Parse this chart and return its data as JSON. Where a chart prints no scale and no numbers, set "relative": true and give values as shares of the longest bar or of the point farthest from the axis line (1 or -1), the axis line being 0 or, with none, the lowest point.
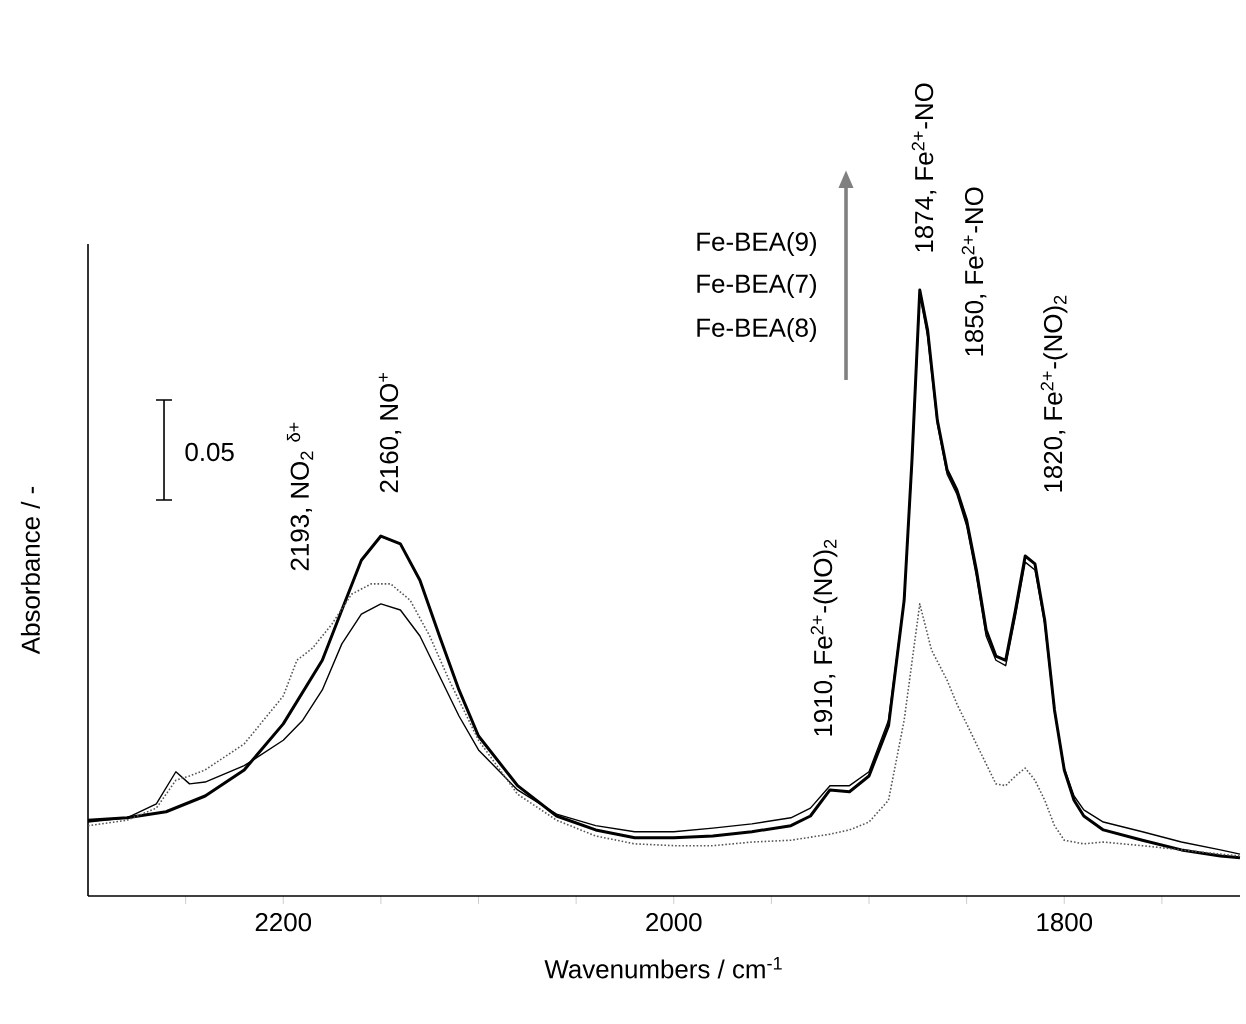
{
  "chart_data": {
    "type": "line",
    "relative": true,
    "xlabel": "Wavenumbers / cm$^{-1}$",
    "ylabel": "Absorbance / -",
    "xlim": [
      2300,
      1710
    ],
    "xticks": [
      {
        "value": 2250,
        "label": null
      },
      2200,
      {
        "value": 2150,
        "label": null
      },
      {
        "value": 2100,
        "label": null
      },
      {
        "value": 2050,
        "label": null
      },
      2000,
      {
        "value": 1950,
        "label": null
      },
      {
        "value": 1900,
        "label": null
      },
      {
        "value": 1850,
        "label": null
      },
      1800,
      {
        "value": 1750,
        "label": null
      }
    ],
    "tick_labels": "x",
    "grid": false,
    "series": [
      {
        "color": "#000000",
        "line_style": "solid",
        "x": [
          2300,
          2280,
          2260,
          2240,
          2220,
          2200,
          2180,
          2170,
          2160,
          2150,
          2140,
          2130,
          2120,
          2110,
          2100,
          2080,
          2060,
          2040,
          2020,
          2000,
          1980,
          1960,
          1940,
          1930,
          1920,
          1910,
          1900,
          1890,
          1882,
          1878,
          1874,
          1870,
          1865,
          1860,
          1855,
          1850,
          1845,
          1840,
          1835,
          1830,
          1825,
          1820,
          1815,
          1810,
          1805,
          1800,
          1795,
          1790,
          1780,
          1760,
          1740,
          1720,
          1710
        ],
        "values": [
          0.125,
          0.129,
          0.139,
          0.165,
          0.208,
          0.284,
          0.389,
          0.472,
          0.554,
          0.594,
          0.581,
          0.521,
          0.429,
          0.34,
          0.264,
          0.182,
          0.132,
          0.109,
          0.096,
          0.096,
          0.099,
          0.106,
          0.116,
          0.132,
          0.175,
          0.172,
          0.198,
          0.281,
          0.488,
          0.719,
          1.0,
          0.934,
          0.785,
          0.703,
          0.67,
          0.62,
          0.538,
          0.439,
          0.396,
          0.389,
          0.472,
          0.561,
          0.548,
          0.455,
          0.307,
          0.208,
          0.158,
          0.132,
          0.109,
          0.092,
          0.076,
          0.066,
          0.063
        ]
      },
      {
        "color": "#000000",
        "line_style": "solid",
        "x": [
          2300,
          2280,
          2265,
          2255,
          2248,
          2240,
          2220,
          2200,
          2190,
          2180,
          2170,
          2160,
          2150,
          2140,
          2130,
          2120,
          2110,
          2100,
          2080,
          2060,
          2040,
          2020,
          2000,
          1980,
          1960,
          1940,
          1930,
          1920,
          1910,
          1900,
          1890,
          1882,
          1878,
          1874,
          1870,
          1865,
          1860,
          1855,
          1850,
          1845,
          1840,
          1835,
          1830,
          1825,
          1820,
          1815,
          1810,
          1805,
          1800,
          1795,
          1790,
          1780,
          1760,
          1740,
          1720,
          1710
        ],
        "values": [
          0.122,
          0.129,
          0.152,
          0.205,
          0.185,
          0.188,
          0.215,
          0.257,
          0.29,
          0.34,
          0.416,
          0.465,
          0.482,
          0.472,
          0.429,
          0.363,
          0.297,
          0.241,
          0.175,
          0.135,
          0.116,
          0.106,
          0.106,
          0.112,
          0.119,
          0.129,
          0.145,
          0.182,
          0.182,
          0.205,
          0.29,
          0.488,
          0.713,
          0.993,
          0.924,
          0.779,
          0.696,
          0.663,
          0.611,
          0.528,
          0.429,
          0.389,
          0.38,
          0.462,
          0.551,
          0.538,
          0.449,
          0.304,
          0.211,
          0.165,
          0.142,
          0.122,
          0.106,
          0.089,
          0.076,
          0.069
        ]
      },
      {
        "color": "#555555",
        "line_style": "dotted",
        "x": [
          2300,
          2280,
          2265,
          2255,
          2248,
          2240,
          2220,
          2200,
          2193,
          2185,
          2175,
          2165,
          2155,
          2145,
          2135,
          2125,
          2115,
          2100,
          2080,
          2060,
          2040,
          2020,
          2000,
          1980,
          1960,
          1940,
          1920,
          1910,
          1900,
          1890,
          1882,
          1874,
          1868,
          1860,
          1855,
          1850,
          1842,
          1835,
          1830,
          1825,
          1820,
          1815,
          1810,
          1805,
          1800,
          1790,
          1780,
          1760,
          1740,
          1720,
          1710
        ],
        "values": [
          0.116,
          0.125,
          0.145,
          0.191,
          0.198,
          0.208,
          0.251,
          0.33,
          0.389,
          0.409,
          0.449,
          0.498,
          0.515,
          0.515,
          0.488,
          0.429,
          0.356,
          0.257,
          0.168,
          0.125,
          0.099,
          0.086,
          0.083,
          0.083,
          0.089,
          0.092,
          0.102,
          0.109,
          0.122,
          0.158,
          0.29,
          0.482,
          0.406,
          0.356,
          0.317,
          0.284,
          0.231,
          0.185,
          0.182,
          0.198,
          0.211,
          0.191,
          0.158,
          0.116,
          0.092,
          0.086,
          0.089,
          0.083,
          0.076,
          0.069,
          0.066
        ]
      }
    ],
    "annotations": [
      "2193, NO$_{2}$ $^{δ+}$",
      "2160, NO$^{+}$",
      "1910, Fe$^{2+}$-(NO)$_{2}$",
      "1874, Fe$^{2+}$-NO",
      "1850, Fe$^{2+}$-NO",
      "1820, Fe$^{2+}$-(NO)$_{2}$",
      "Fe-BEA(9)",
      "Fe-BEA(7)",
      "Fe-BEA(8)",
      "0.05"
    ]
  }
}
